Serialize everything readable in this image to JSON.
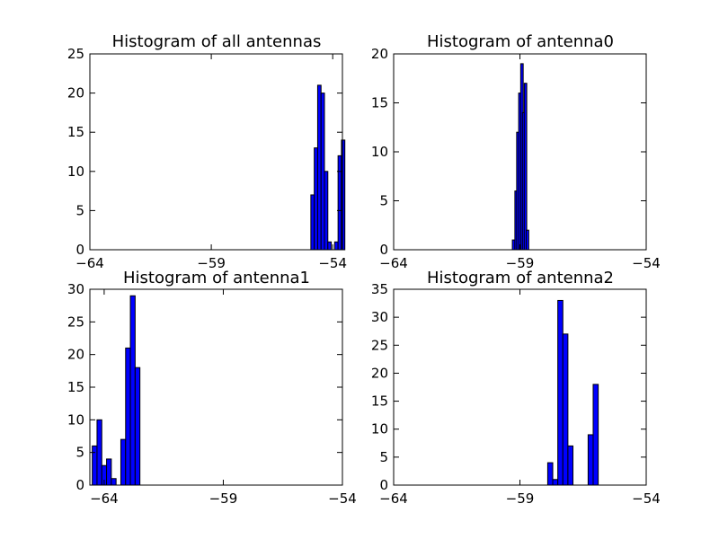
{
  "chart_data": [
    {
      "type": "bar",
      "title": "Histogram of all antennas",
      "xlim": [
        -64,
        -53.6
      ],
      "ylim": [
        0,
        25
      ],
      "xticks": [
        -64,
        -59,
        -54
      ],
      "xtick_labels": [
        "−64",
        "−59",
        "−54"
      ],
      "yticks": [
        0,
        5,
        10,
        15,
        20,
        25
      ],
      "bin_width": 0.14,
      "bar_color": "#0000ff",
      "bars": [
        {
          "x": -54.9,
          "y": 7
        },
        {
          "x": -54.76,
          "y": 13
        },
        {
          "x": -54.62,
          "y": 21
        },
        {
          "x": -54.48,
          "y": 20
        },
        {
          "x": -54.34,
          "y": 10
        },
        {
          "x": -54.2,
          "y": 1
        },
        {
          "x": -53.92,
          "y": 1
        },
        {
          "x": -53.78,
          "y": 12
        },
        {
          "x": -53.64,
          "y": 14
        }
      ]
    },
    {
      "type": "bar",
      "title": "Histogram of antenna0",
      "xlim": [
        -64,
        -54
      ],
      "ylim": [
        0,
        20
      ],
      "xticks": [
        -64,
        -59,
        -54
      ],
      "xtick_labels": [
        "−64",
        "−59",
        "−54"
      ],
      "yticks": [
        0,
        5,
        10,
        15,
        20
      ],
      "bin_width": 0.1,
      "bar_color": "#0000ff",
      "bars": [
        {
          "x": -59.3,
          "y": 1
        },
        {
          "x": -59.2,
          "y": 6
        },
        {
          "x": -59.13,
          "y": 12
        },
        {
          "x": -59.05,
          "y": 16
        },
        {
          "x": -58.97,
          "y": 19
        },
        {
          "x": -58.9,
          "y": 14
        },
        {
          "x": -58.83,
          "y": 17
        },
        {
          "x": -58.75,
          "y": 2
        }
      ]
    },
    {
      "type": "bar",
      "title": "Histogram of antenna1",
      "xlim": [
        -64.6,
        -54
      ],
      "ylim": [
        0,
        30
      ],
      "xticks": [
        -64,
        -59,
        -54
      ],
      "xtick_labels": [
        "−64",
        "−59",
        "−54"
      ],
      "yticks": [
        0,
        5,
        10,
        15,
        20,
        25,
        30
      ],
      "bin_width": 0.2,
      "bar_color": "#0000ff",
      "bars": [
        {
          "x": -64.5,
          "y": 6
        },
        {
          "x": -64.3,
          "y": 10
        },
        {
          "x": -64.1,
          "y": 3
        },
        {
          "x": -63.9,
          "y": 4
        },
        {
          "x": -63.7,
          "y": 1
        },
        {
          "x": -63.3,
          "y": 7
        },
        {
          "x": -63.1,
          "y": 21
        },
        {
          "x": -62.9,
          "y": 29
        },
        {
          "x": -62.7,
          "y": 18
        }
      ]
    },
    {
      "type": "bar",
      "title": "Histogram of antenna2",
      "xlim": [
        -64,
        -54
      ],
      "ylim": [
        0,
        35
      ],
      "xticks": [
        -64,
        -59,
        -54
      ],
      "xtick_labels": [
        "−64",
        "−59",
        "−54"
      ],
      "yticks": [
        0,
        5,
        10,
        15,
        20,
        25,
        30,
        35
      ],
      "bin_width": 0.2,
      "bar_color": "#0000ff",
      "bars": [
        {
          "x": -57.9,
          "y": 4
        },
        {
          "x": -57.7,
          "y": 1
        },
        {
          "x": -57.5,
          "y": 33
        },
        {
          "x": -57.3,
          "y": 27
        },
        {
          "x": -57.1,
          "y": 7
        },
        {
          "x": -56.3,
          "y": 9
        },
        {
          "x": -56.1,
          "y": 18
        }
      ]
    }
  ]
}
